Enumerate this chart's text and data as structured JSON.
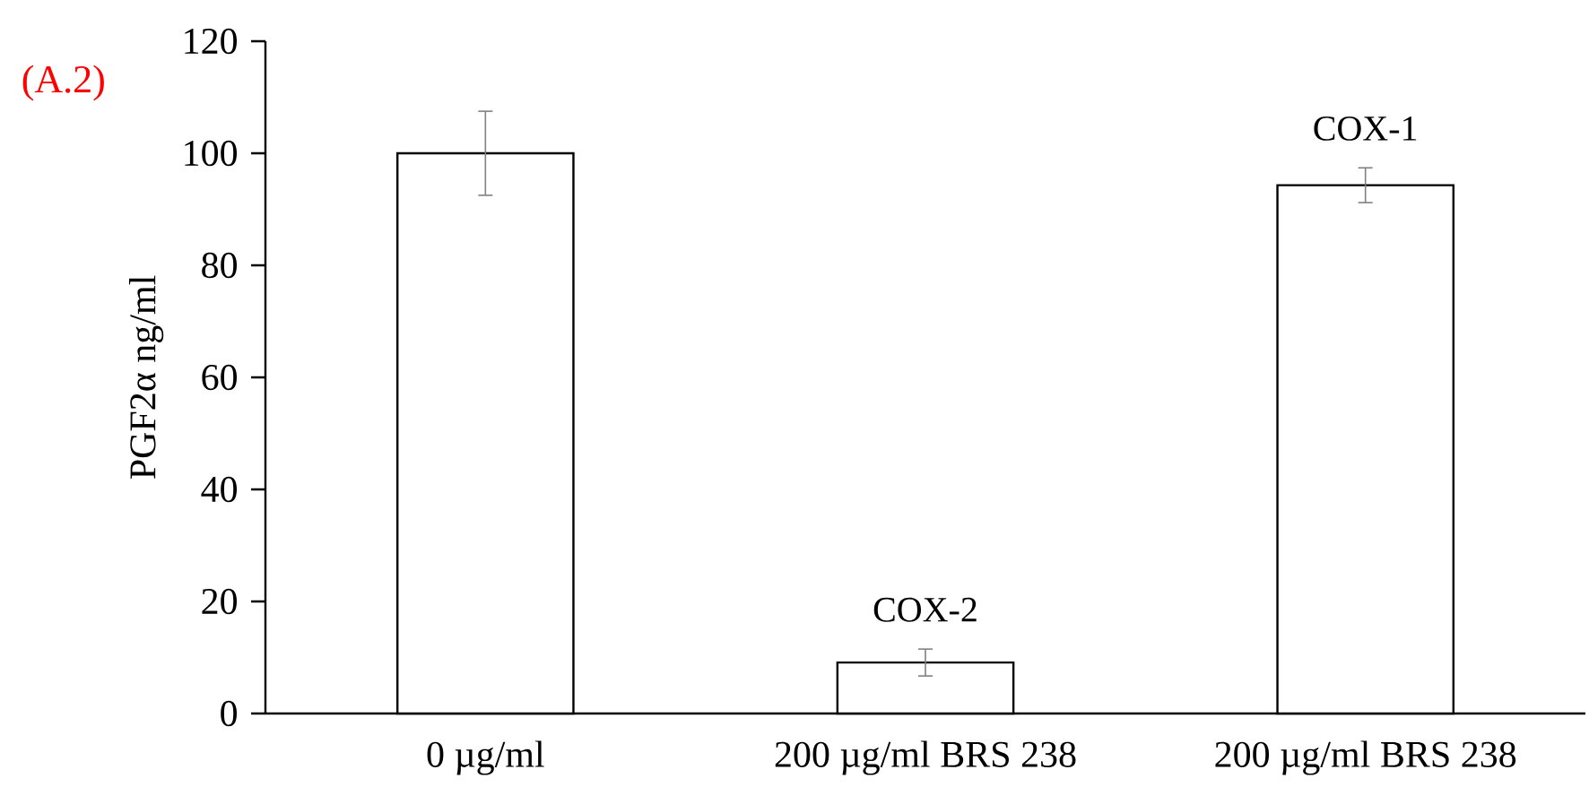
{
  "chart_data": {
    "type": "bar",
    "ylabel": "PGF2α ng/ml",
    "categories": [
      "0 µg/ml",
      "200 µg/ml BRS 238",
      "200 µg/ml BRS 238"
    ],
    "values": [
      100,
      9.1,
      94.3
    ],
    "errors": [
      7.5,
      2.4,
      3.1
    ],
    "color": "#ffffff",
    "ylim": [
      0,
      120
    ],
    "yticks": [
      0,
      20,
      40,
      60,
      80,
      100,
      120
    ],
    "annotations": [
      "(A.2)",
      "COX-2",
      "COX-1"
    ]
  }
}
